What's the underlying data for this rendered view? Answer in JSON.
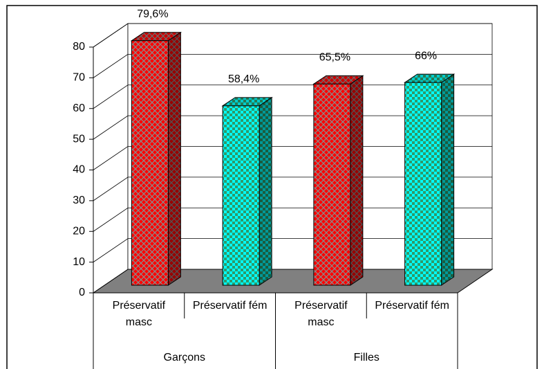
{
  "chart_data": {
    "type": "bar3d",
    "categories": [
      "Préservatif masc",
      "Préservatif fém",
      "Préservatif masc",
      "Préservatif fém"
    ],
    "groups": [
      "Garçons",
      "Filles"
    ],
    "values": [
      79.6,
      58.4,
      65.5,
      66
    ],
    "value_labels": [
      "79,6%",
      "58,4%",
      "65,5%",
      "66%"
    ],
    "colors": [
      "#ff0000",
      "#00ffff",
      "#ff0000",
      "#00ffff"
    ],
    "ylim": [
      0,
      80
    ],
    "yticks": [
      0,
      10,
      20,
      30,
      40,
      50,
      60,
      70,
      80
    ],
    "grid": true
  }
}
